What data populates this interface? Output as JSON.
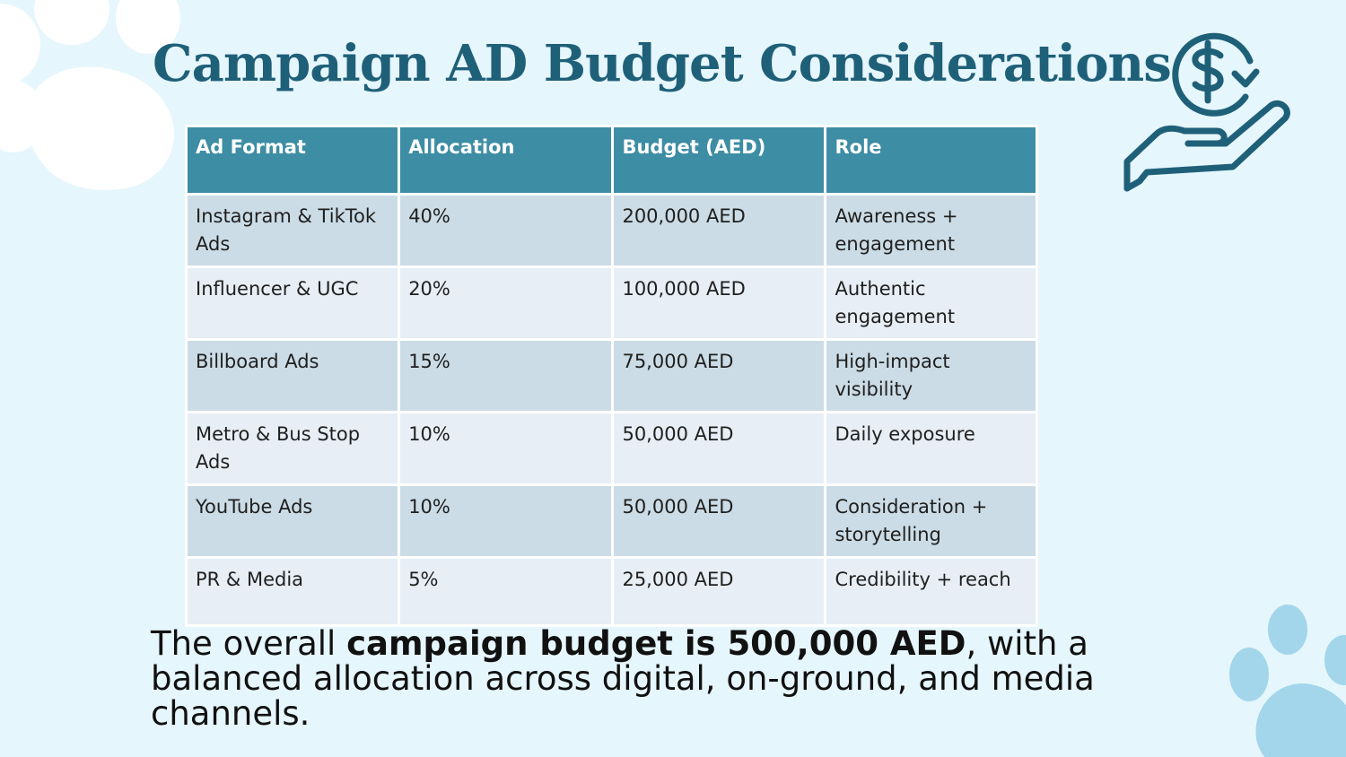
{
  "title": "Campaign AD Budget Considerations",
  "colors": {
    "title": "#1f6079",
    "header_bg": "#3d8da4",
    "row_dark": "#cbdce6",
    "row_light": "#e7eef5",
    "background": "#e6f6fd",
    "paw_white": "#ffffff",
    "paw_blue": "#a3d6ea"
  },
  "icons": {
    "top_right": "hand-holding-dollar-icon",
    "decor_top_left": "paw-print-icon",
    "decor_bottom_right": "paw-print-icon"
  },
  "table": {
    "headers": [
      "Ad Format",
      "Allocation",
      "Budget (AED)",
      "Role"
    ],
    "rows": [
      [
        "Instagram & TikTok Ads",
        "40%",
        "200,000 AED",
        "Awareness + engagement"
      ],
      [
        "Influencer & UGC",
        "20%",
        "100,000 AED",
        "Authentic engagement"
      ],
      [
        "Billboard Ads",
        "15%",
        "75,000 AED",
        "High-impact visibility"
      ],
      [
        "Metro & Bus Stop Ads",
        "10%",
        "50,000 AED",
        "Daily exposure"
      ],
      [
        "YouTube Ads",
        "10%",
        "50,000 AED",
        "Consideration + storytelling"
      ],
      [
        "PR & Media",
        "5%",
        "25,000 AED",
        "Credibility + reach"
      ]
    ]
  },
  "footer": {
    "prefix": "The overall ",
    "bold": "campaign budget is 500,000 AED",
    "suffix": ", with a balanced allocation across digital, on-ground, and media channels."
  }
}
